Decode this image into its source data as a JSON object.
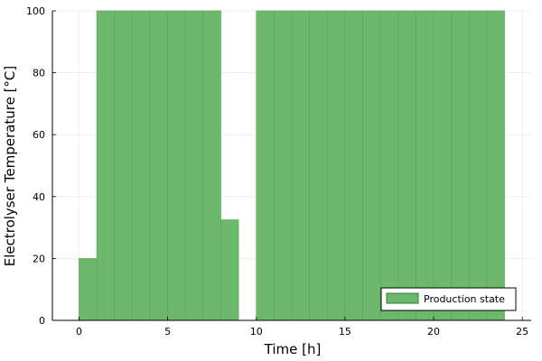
{
  "chart_data": {
    "type": "bar",
    "xlabel": "Time [h]",
    "ylabel": "Electrolyser Temperature [°C]",
    "xlim": [
      -1.5,
      25.5
    ],
    "ylim": [
      0,
      100
    ],
    "xticks": [
      0,
      5,
      10,
      15,
      20,
      25
    ],
    "yticks": [
      0,
      20,
      40,
      60,
      80,
      100
    ],
    "grid": true,
    "legend_position": "bottom-right",
    "series": [
      {
        "name": "Production state",
        "color": "#6cb86c",
        "bin_edges": [
          0,
          1,
          2,
          3,
          4,
          5,
          6,
          7,
          8,
          9,
          10,
          11,
          12,
          13,
          14,
          15,
          16,
          17,
          18,
          19,
          20,
          21,
          22,
          23,
          24
        ],
        "values": [
          20,
          100,
          100,
          100,
          100,
          100,
          100,
          100,
          32.5,
          0,
          100,
          100,
          100,
          100,
          100,
          100,
          100,
          100,
          100,
          100,
          100,
          100,
          100,
          100
        ]
      }
    ]
  }
}
